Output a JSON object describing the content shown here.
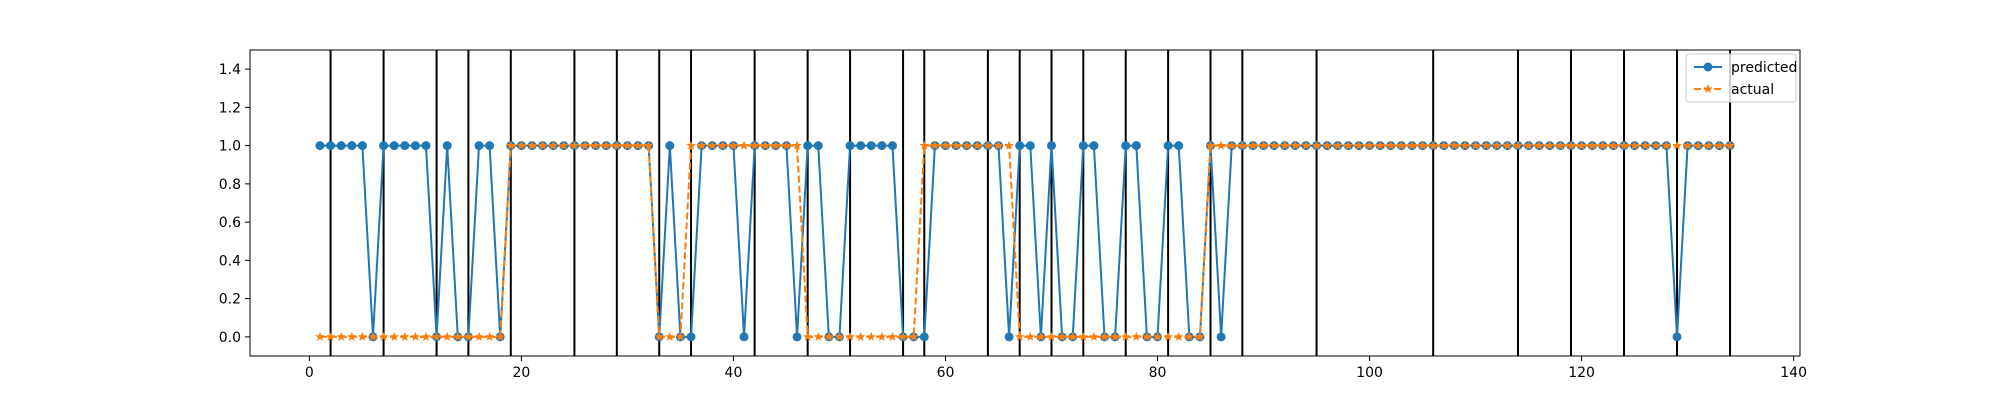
{
  "chart_data": {
    "type": "line",
    "title": "",
    "xlabel": "",
    "ylabel": "",
    "xlim": [
      -5.6,
      140.6
    ],
    "ylim": [
      -0.1,
      1.5
    ],
    "xticks": [
      0,
      20,
      40,
      60,
      80,
      100,
      120,
      140
    ],
    "yticks": [
      0.0,
      0.2,
      0.4,
      0.6,
      0.8,
      1.0,
      1.2,
      1.4
    ],
    "xtick_labels": [
      "0",
      "20",
      "40",
      "60",
      "80",
      "100",
      "120",
      "140"
    ],
    "ytick_labels": [
      "0.0",
      "0.2",
      "0.4",
      "0.6",
      "0.8",
      "1.0",
      "1.2",
      "1.4"
    ],
    "vlines": [
      2,
      7,
      12,
      15,
      19,
      25,
      29,
      33,
      36,
      42,
      47,
      51,
      56,
      58,
      64,
      67,
      70,
      73,
      77,
      81,
      85,
      88,
      95,
      106,
      114,
      119,
      124,
      129,
      134
    ],
    "grid": false,
    "legend_position": "top-right",
    "series": [
      {
        "name": "predicted",
        "color": "#1f77b4",
        "marker": "circle",
        "line_style": "solid",
        "x_start": 1,
        "values": [
          1,
          1,
          1,
          1,
          1,
          0,
          1,
          1,
          1,
          1,
          1,
          0,
          1,
          0,
          0,
          1,
          1,
          0,
          1,
          1,
          1,
          1,
          1,
          1,
          1,
          1,
          1,
          1,
          1,
          1,
          1,
          1,
          0,
          1,
          0,
          0,
          1,
          1,
          1,
          1,
          0,
          1,
          1,
          1,
          1,
          0,
          1,
          1,
          0,
          0,
          1,
          1,
          1,
          1,
          1,
          0,
          0,
          0,
          1,
          1,
          1,
          1,
          1,
          1,
          1,
          0,
          1,
          1,
          0,
          1,
          0,
          0,
          1,
          1,
          0,
          0,
          1,
          1,
          0,
          0,
          1,
          1,
          0,
          0,
          1,
          0,
          1,
          1,
          1,
          1,
          1,
          1,
          1,
          1,
          1,
          1,
          1,
          1,
          1,
          1,
          1,
          1,
          1,
          1,
          1,
          1,
          1,
          1,
          1,
          1,
          1,
          1,
          1,
          1,
          1,
          1,
          1,
          1,
          1,
          1,
          1,
          1,
          1,
          1,
          1,
          1,
          1,
          1,
          0,
          1,
          1,
          1,
          1,
          1
        ]
      },
      {
        "name": "actual",
        "color": "#ff7f0e",
        "marker": "star",
        "line_style": "dashed",
        "x_start": 1,
        "values": [
          0,
          0,
          0,
          0,
          0,
          0,
          0,
          0,
          0,
          0,
          0,
          0,
          0,
          0,
          0,
          0,
          0,
          0,
          1,
          1,
          1,
          1,
          1,
          1,
          1,
          1,
          1,
          1,
          1,
          1,
          1,
          1,
          0,
          0,
          0,
          1,
          1,
          1,
          1,
          1,
          1,
          1,
          1,
          1,
          1,
          1,
          0,
          0,
          0,
          0,
          0,
          0,
          0,
          0,
          0,
          0,
          0,
          1,
          1,
          1,
          1,
          1,
          1,
          1,
          1,
          1,
          0,
          0,
          0,
          0,
          0,
          0,
          0,
          0,
          0,
          0,
          0,
          0,
          0,
          0,
          0,
          0,
          0,
          0,
          1,
          1,
          1,
          1,
          1,
          1,
          1,
          1,
          1,
          1,
          1,
          1,
          1,
          1,
          1,
          1,
          1,
          1,
          1,
          1,
          1,
          1,
          1,
          1,
          1,
          1,
          1,
          1,
          1,
          1,
          1,
          1,
          1,
          1,
          1,
          1,
          1,
          1,
          1,
          1,
          1,
          1,
          1,
          1,
          1,
          1,
          1,
          1,
          1,
          1
        ]
      }
    ]
  }
}
